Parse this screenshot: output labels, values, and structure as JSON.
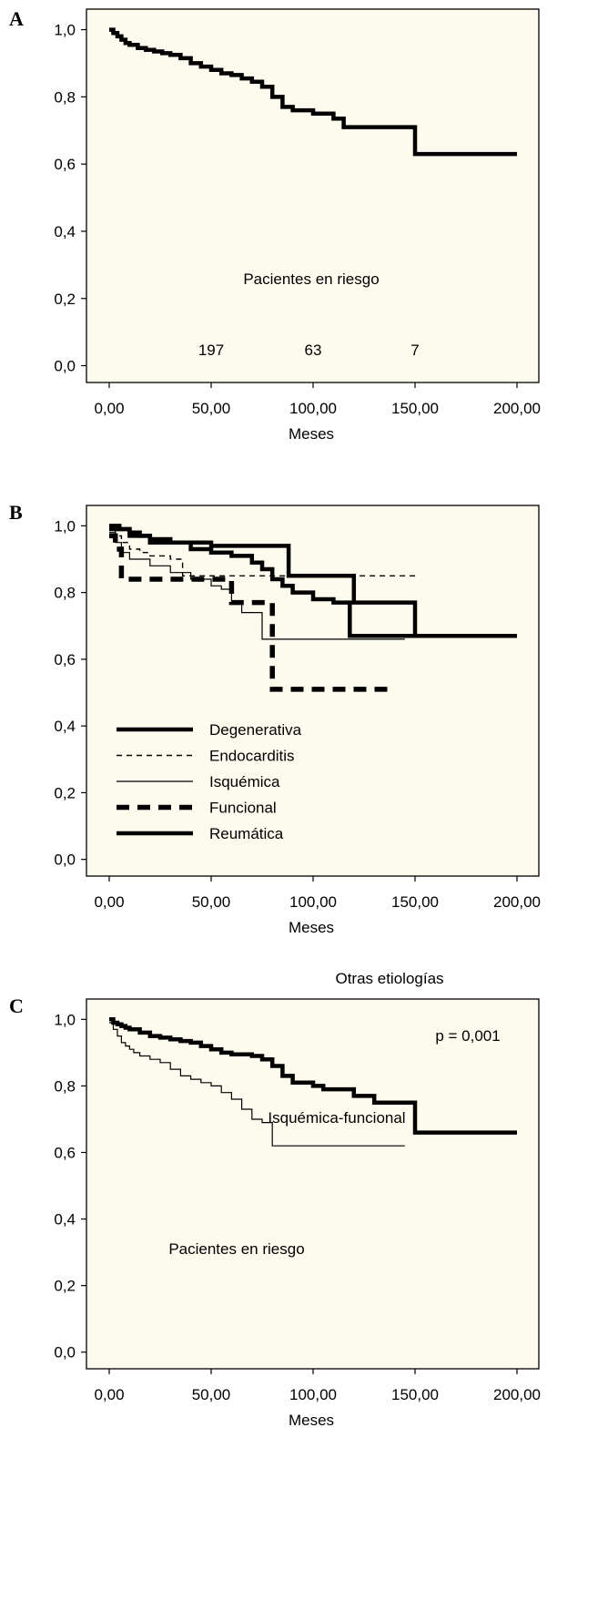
{
  "chart_data": [
    {
      "panel": "A",
      "type": "line",
      "step": true,
      "xlabel": "Meses",
      "ylabel": "",
      "xlim": [
        0,
        200
      ],
      "ylim": [
        0,
        1
      ],
      "x_ticks": [
        "0,00",
        "50,00",
        "100,00",
        "150,00",
        "200,00"
      ],
      "y_ticks": [
        "0,0",
        "0,2",
        "0,4",
        "0,6",
        "0,8",
        "1,0"
      ],
      "annotations": [
        "Pacientes en riesgo"
      ],
      "at_risk": [
        {
          "x": 50,
          "label": "197"
        },
        {
          "x": 100,
          "label": "63"
        },
        {
          "x": 150,
          "label": "7"
        }
      ],
      "series": [
        {
          "style": "thick",
          "x": [
            0,
            2,
            4,
            6,
            8,
            10,
            14,
            18,
            22,
            26,
            30,
            35,
            40,
            45,
            50,
            55,
            60,
            65,
            70,
            75,
            80,
            85,
            90,
            100,
            105,
            110,
            115,
            120,
            130,
            140,
            148,
            150,
            160,
            180,
            200
          ],
          "y": [
            1.0,
            0.99,
            0.98,
            0.97,
            0.96,
            0.955,
            0.945,
            0.94,
            0.935,
            0.93,
            0.925,
            0.915,
            0.9,
            0.89,
            0.88,
            0.87,
            0.865,
            0.855,
            0.845,
            0.83,
            0.8,
            0.77,
            0.76,
            0.75,
            0.75,
            0.735,
            0.71,
            0.71,
            0.71,
            0.71,
            0.71,
            0.63,
            0.63,
            0.63,
            0.63
          ]
        }
      ]
    },
    {
      "panel": "B",
      "type": "line",
      "step": true,
      "xlabel": "Meses",
      "ylabel": "",
      "xlim": [
        0,
        200
      ],
      "ylim": [
        0,
        1
      ],
      "x_ticks": [
        "0,00",
        "50,00",
        "100,00",
        "150,00",
        "200,00"
      ],
      "y_ticks": [
        "0,0",
        "0,2",
        "0,4",
        "0,6",
        "0,8",
        "1,0"
      ],
      "legend_position": "bottom-left",
      "series": [
        {
          "name": "Degenerativa",
          "style": "thick",
          "x": [
            0,
            5,
            10,
            15,
            20,
            30,
            40,
            50,
            60,
            70,
            75,
            80,
            85,
            90,
            100,
            110,
            118,
            120,
            150,
            175
          ],
          "y": [
            1.0,
            0.99,
            0.98,
            0.97,
            0.96,
            0.95,
            0.93,
            0.92,
            0.91,
            0.89,
            0.87,
            0.84,
            0.82,
            0.8,
            0.78,
            0.77,
            0.67,
            0.67,
            0.67,
            0.67
          ]
        },
        {
          "name": "Endocarditis",
          "style": "dashed",
          "x": [
            0,
            3,
            6,
            10,
            15,
            20,
            30,
            36,
            40,
            60,
            80,
            100,
            120,
            140,
            152
          ],
          "y": [
            1.0,
            0.97,
            0.95,
            0.93,
            0.92,
            0.91,
            0.9,
            0.85,
            0.85,
            0.85,
            0.85,
            0.85,
            0.85,
            0.85,
            0.85
          ]
        },
        {
          "name": "Isquémica",
          "style": "thin",
          "x": [
            0,
            3,
            6,
            10,
            20,
            30,
            40,
            50,
            55,
            60,
            65,
            70,
            75,
            80,
            100,
            130,
            145
          ],
          "y": [
            0.98,
            0.95,
            0.92,
            0.9,
            0.88,
            0.86,
            0.84,
            0.82,
            0.81,
            0.77,
            0.74,
            0.74,
            0.66,
            0.66,
            0.66,
            0.66,
            0.66
          ]
        },
        {
          "name": "Funcional",
          "style": "bigdash",
          "x": [
            0,
            3,
            6,
            10,
            40,
            55,
            60,
            70,
            80,
            100,
            120,
            140
          ],
          "y": [
            0.97,
            0.93,
            0.84,
            0.84,
            0.84,
            0.84,
            0.77,
            0.77,
            0.51,
            0.51,
            0.51,
            0.51
          ]
        },
        {
          "name": "Reumática",
          "style": "thick",
          "x": [
            0,
            10,
            20,
            30,
            40,
            50,
            60,
            70,
            88,
            90,
            100,
            118,
            120,
            150,
            155,
            170,
            200
          ],
          "y": [
            0.99,
            0.97,
            0.95,
            0.95,
            0.95,
            0.94,
            0.94,
            0.94,
            0.85,
            0.85,
            0.85,
            0.85,
            0.77,
            0.67,
            0.67,
            0.67,
            0.67
          ]
        }
      ]
    },
    {
      "panel": "C",
      "type": "line",
      "step": true,
      "xlabel": "Meses",
      "ylabel": "",
      "xlim": [
        0,
        200
      ],
      "ylim": [
        0,
        1
      ],
      "x_ticks": [
        "0,00",
        "50,00",
        "100,00",
        "150,00",
        "200,00"
      ],
      "y_ticks": [
        "0,0",
        "0,2",
        "0,4",
        "0,6",
        "0,8",
        "1,0"
      ],
      "annotations": [
        "Otras etiologías",
        "p = 0,001",
        "Isquémica-funcional",
        "Pacientes en riesgo"
      ],
      "series": [
        {
          "name": "Otras etiologías",
          "style": "thick",
          "x": [
            0,
            2,
            4,
            6,
            8,
            10,
            15,
            20,
            25,
            30,
            35,
            40,
            45,
            50,
            55,
            60,
            70,
            75,
            80,
            85,
            90,
            100,
            105,
            110,
            120,
            130,
            140,
            150,
            155,
            170,
            200
          ],
          "y": [
            1.0,
            0.99,
            0.985,
            0.98,
            0.975,
            0.97,
            0.96,
            0.95,
            0.945,
            0.94,
            0.935,
            0.93,
            0.92,
            0.91,
            0.9,
            0.895,
            0.89,
            0.88,
            0.86,
            0.83,
            0.81,
            0.8,
            0.79,
            0.79,
            0.77,
            0.75,
            0.75,
            0.66,
            0.66,
            0.66,
            0.66
          ]
        },
        {
          "name": "Isquémica-funcional",
          "style": "thin",
          "x": [
            0,
            2,
            4,
            6,
            8,
            10,
            12,
            15,
            20,
            25,
            30,
            35,
            40,
            45,
            50,
            55,
            60,
            65,
            70,
            75,
            80,
            100,
            120,
            145
          ],
          "y": [
            0.99,
            0.97,
            0.95,
            0.93,
            0.92,
            0.91,
            0.9,
            0.89,
            0.88,
            0.87,
            0.85,
            0.83,
            0.82,
            0.81,
            0.8,
            0.78,
            0.76,
            0.73,
            0.7,
            0.69,
            0.62,
            0.62,
            0.62,
            0.62
          ]
        }
      ]
    }
  ]
}
